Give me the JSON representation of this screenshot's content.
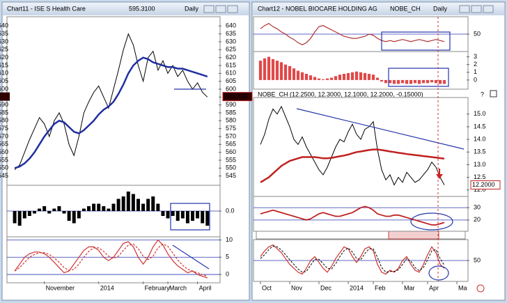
{
  "chart_data": [
    {
      "type": "line",
      "title": "Chart11 - ISE S Health Care",
      "price": "595.3100",
      "period": "Daily",
      "xlim": [
        -1,
        41
      ],
      "xticks": [
        {
          "value": 6,
          "label": "November"
        },
        {
          "value": 17,
          "label": "2014"
        },
        {
          "value": 26,
          "label": "February"
        },
        {
          "value": 31,
          "label": "March"
        },
        {
          "value": 37,
          "label": "April"
        }
      ],
      "panels": [
        {
          "type": "line",
          "ylim": [
            540,
            645
          ],
          "yticks": [
            545,
            550,
            555,
            560,
            565,
            570,
            575,
            580,
            585,
            590,
            595,
            600,
            605,
            610,
            615,
            620,
            625,
            630,
            635,
            640
          ],
          "grid": false,
          "last": {
            "value": 595.31,
            "label": "595.310"
          },
          "series": [
            {
              "color": "#000000",
              "width": 1,
              "values": [
                549,
                552,
                560,
                568,
                575,
                582,
                578,
                570,
                580,
                585,
                578,
                565,
                558,
                570,
                585,
                592,
                598,
                602,
                595,
                588,
                600,
                612,
                625,
                635,
                628,
                615,
                605,
                620,
                624,
                612,
                618,
                610,
                615,
                608,
                612,
                605,
                600,
                604,
                598,
                595
              ]
            },
            {
              "color": "#1f2fa0",
              "width": 2.5,
              "values": [
                550,
                551,
                553,
                556,
                560,
                565,
                570,
                574,
                578,
                580,
                579,
                576,
                573,
                572,
                574,
                577,
                580,
                584,
                587,
                589,
                592,
                597,
                603,
                610,
                615,
                618,
                620,
                619,
                617,
                616,
                615,
                614,
                614,
                613,
                613,
                612,
                611,
                610,
                609,
                608
              ]
            }
          ]
        },
        {
          "type": "bar",
          "ylim": [
            -1,
            1
          ],
          "yticks": [
            {
              "value": 0,
              "label": "0.0"
            }
          ],
          "grid": true,
          "series": [
            {
              "color": "#000000",
              "values": [
                -0.5,
                -0.6,
                -0.3,
                -0.2,
                -0.1,
                0.1,
                0.2,
                -0.1,
                0.1,
                0.2,
                -0.1,
                -0.4,
                -0.5,
                -0.3,
                0.1,
                0.2,
                0.3,
                0.3,
                0.2,
                0.1,
                0.3,
                0.5,
                0.6,
                0.8,
                0.7,
                0.5,
                0.3,
                0.5,
                0.6,
                0.3,
                -0.2,
                -0.3,
                -0.2,
                -0.4,
                -0.3,
                -0.5,
                -0.4,
                -0.3,
                -0.5,
                -0.6
              ]
            }
          ]
        },
        {
          "type": "line",
          "ylim": [
            -2,
            10.5
          ],
          "yticks": [
            0,
            5,
            10
          ],
          "grid": true,
          "series": [
            {
              "color": "#d03030",
              "width": 1.2,
              "values": [
                1,
                3,
                5,
                6,
                6.5,
                6.5,
                6,
                5,
                3.5,
                2,
                0.5,
                1,
                3,
                5,
                7,
                8,
                8,
                7,
                5,
                4,
                5,
                7,
                9,
                9.5,
                8,
                5,
                3,
                5,
                8,
                10,
                8.5,
                6,
                4,
                2.5,
                1.5,
                0.5,
                1,
                0,
                -0.5,
                -1
              ]
            },
            {
              "color": "#d03030",
              "width": 1.2,
              "dashed": true,
              "values": [
                1,
                2,
                3.5,
                5,
                5.8,
                6.3,
                6.3,
                5.8,
                4.8,
                3.5,
                2,
                1.2,
                1.5,
                3,
                5,
                6.7,
                7.7,
                7.7,
                6.7,
                5.3,
                4.7,
                5.3,
                7,
                8.5,
                8.8,
                7.5,
                5.3,
                4.3,
                5.3,
                7.7,
                8.8,
                8.2,
                6.2,
                4.2,
                2.7,
                1.5,
                1,
                0.5,
                0,
                -0.5
              ]
            }
          ]
        }
      ]
    },
    {
      "type": "line",
      "title": "Chart12 - NOBEL BIOCARE HOLDING AG",
      "symbol": "NOBE_CH",
      "period": "Daily",
      "legend": "NOBE_CH (12.2500, 12.3000, 12.1000, 12.2000, -0.15000)",
      "xlim": [
        -1,
        49
      ],
      "xticks": [
        {
          "value": 0,
          "label": "Oct"
        },
        {
          "value": 7,
          "label": "Nov"
        },
        {
          "value": 14,
          "label": "Dec"
        },
        {
          "value": 21,
          "label": "2014"
        },
        {
          "value": 27,
          "label": "Feb"
        },
        {
          "value": 34,
          "label": "Mar"
        },
        {
          "value": 40,
          "label": "Apr"
        },
        {
          "value": 47,
          "label": "Ma"
        }
      ],
      "panels": [
        {
          "type": "line",
          "ylim": [
            35,
            65
          ],
          "yticks": [
            50
          ],
          "grid": true,
          "series": [
            {
              "color": "#b03030",
              "width": 1.2,
              "values": [
                55,
                58,
                60,
                57,
                55,
                52,
                50,
                47,
                45,
                42,
                40,
                42,
                46,
                52,
                57,
                58,
                56,
                54,
                52,
                50,
                48,
                47,
                46,
                46,
                47,
                48,
                50,
                49,
                46,
                44,
                43,
                44,
                43,
                44,
                45,
                44,
                43,
                44,
                45,
                44,
                43,
                44,
                45,
                44,
                43
              ]
            }
          ]
        },
        {
          "type": "bar",
          "ylim": [
            -1,
            3.5
          ],
          "yticks": [
            0,
            1,
            2,
            3
          ],
          "grid": false,
          "series": [
            {
              "color": "#e04848",
              "values": [
                2.5,
                2.8,
                3.0,
                2.7,
                2.5,
                2.3,
                2.0,
                1.8,
                1.5,
                1.2,
                1.0,
                0.8,
                0.6,
                0.4,
                0.2,
                0.1,
                0.2,
                0.3,
                0.5,
                0.7,
                0.8,
                0.9,
                1.0,
                1.1,
                1.0,
                0.9,
                0.8,
                0.7,
                0.3,
                -0.2,
                -0.4,
                -0.4,
                -0.5,
                -0.5,
                -0.4,
                -0.5,
                -0.5,
                -0.4,
                -0.5,
                -0.4,
                -0.4,
                -0.3,
                -0.4,
                -0.5,
                -0.5
              ]
            }
          ]
        },
        {
          "type": "line",
          "ylim": [
            11.8,
            15.6
          ],
          "yticks": [
            {
              "value": 12,
              "label": "12.0"
            },
            12.5,
            {
              "value": 13,
              "label": "13.0"
            },
            13.5,
            {
              "value": 14,
              "label": "14.0"
            },
            14.5,
            {
              "value": 15,
              "label": "15.0"
            }
          ],
          "grid": false,
          "last": {
            "value": 12.2,
            "label": "12.2000"
          },
          "series": [
            {
              "color": "#000000",
              "width": 1,
              "values": [
                13.8,
                14.2,
                14.8,
                15.2,
                15.0,
                15.3,
                14.9,
                14.5,
                14.0,
                13.8,
                14.1,
                13.7,
                13.4,
                13.1,
                12.8,
                12.6,
                12.9,
                13.3,
                13.7,
                14.0,
                13.9,
                14.3,
                14.6,
                14.2,
                14.0,
                14.4,
                14.5,
                14.7,
                13.6,
                12.8,
                12.4,
                12.6,
                12.2,
                12.5,
                12.3,
                12.7,
                12.5,
                12.3,
                12.4,
                12.6,
                12.8,
                13.1,
                12.9,
                12.5,
                12.2
              ]
            },
            {
              "color": "#c02020",
              "width": 2.5,
              "values": [
                12.3,
                12.4,
                12.5,
                12.65,
                12.8,
                12.95,
                13.05,
                13.15,
                13.2,
                13.25,
                13.3,
                13.3,
                13.3,
                13.3,
                13.28,
                13.25,
                13.25,
                13.27,
                13.3,
                13.33,
                13.36,
                13.4,
                13.45,
                13.5,
                13.52,
                13.55,
                13.58,
                13.6,
                13.6,
                13.58,
                13.55,
                13.52,
                13.5,
                13.47,
                13.45,
                13.42,
                13.4,
                13.38,
                13.36,
                13.34,
                13.32,
                13.3,
                13.28,
                13.26,
                13.24
              ]
            }
          ]
        },
        {
          "type": "line",
          "ylim": [
            12,
            38
          ],
          "yticks": [
            20,
            30
          ],
          "grid": true,
          "series": [
            {
              "color": "#c02020",
              "width": 1.8,
              "values": [
                25,
                26,
                27,
                28,
                27,
                26,
                25,
                24,
                23,
                22,
                21,
                20,
                21,
                23,
                25,
                26,
                25,
                24,
                23,
                23,
                24,
                25,
                26,
                28,
                30,
                31,
                30,
                28,
                25,
                24,
                23,
                23,
                24,
                24,
                23,
                22,
                21,
                20,
                19,
                18,
                17,
                16,
                16,
                17,
                18
              ]
            }
          ]
        },
        {
          "type": "line",
          "ylim": [
            0,
            100
          ],
          "yticks": [
            50
          ],
          "grid": true,
          "series": [
            {
              "color": "#d03030",
              "width": 1.2,
              "values": [
                60,
                75,
                85,
                90,
                80,
                70,
                55,
                40,
                30,
                20,
                15,
                30,
                50,
                60,
                45,
                30,
                20,
                35,
                55,
                70,
                85,
                80,
                60,
                45,
                60,
                80,
                85,
                75,
                40,
                20,
                15,
                25,
                20,
                30,
                50,
                60,
                40,
                25,
                20,
                40,
                65,
                85,
                70,
                40,
                30
              ]
            },
            {
              "color": "#000000",
              "width": 1,
              "dashed": true,
              "values": [
                55,
                65,
                78,
                87,
                85,
                77,
                65,
                52,
                40,
                28,
                20,
                22,
                38,
                53,
                53,
                42,
                30,
                28,
                42,
                60,
                75,
                82,
                72,
                55,
                52,
                68,
                80,
                80,
                58,
                32,
                20,
                22,
                22,
                26,
                40,
                55,
                48,
                32,
                24,
                32,
                52,
                75,
                78,
                55,
                38
              ]
            }
          ]
        }
      ]
    }
  ]
}
